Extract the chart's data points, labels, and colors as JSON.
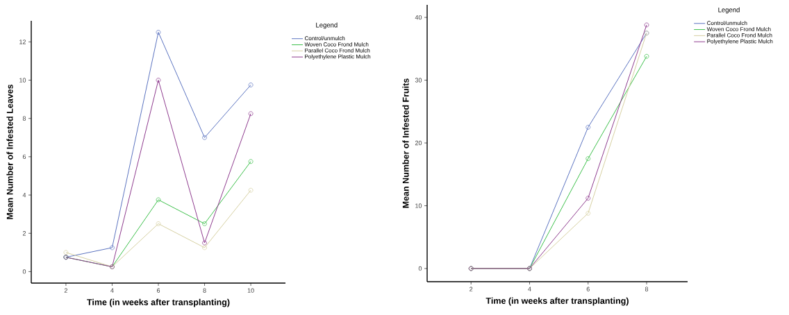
{
  "chart_data": [
    {
      "type": "line",
      "xlabel": "Time (in weeks after transplanting)",
      "ylabel": "Mean Number of Infested Leaves",
      "legend_title": "Legend",
      "legend": "top right",
      "marker": "circle",
      "grid": false,
      "x": [
        2,
        4,
        6,
        8,
        10
      ],
      "xlim": [
        0.5,
        11.5
      ],
      "xticks": [
        2,
        4,
        6,
        8,
        10
      ],
      "ylim": [
        -0.6,
        13.1
      ],
      "yticks": [
        0,
        2,
        4,
        6,
        8,
        10,
        12
      ],
      "series": [
        {
          "name": "Control/unmulch",
          "color": "#5a72c0",
          "values": [
            0.75,
            1.25,
            12.5,
            7,
            9.75
          ]
        },
        {
          "name": "Woven Coco Frond Mulch",
          "color": "#3cc04a",
          "values": [
            0.75,
            0.25,
            3.75,
            2.5,
            5.75
          ]
        },
        {
          "name": "Parallel Coco Frond Mulch",
          "color": "#d6d0a2",
          "values": [
            1,
            0.25,
            2.5,
            1.25,
            4.25
          ]
        },
        {
          "name": "Polyethylene Plastic Mulch",
          "color": "#8e3a8e",
          "values": [
            0.75,
            0.25,
            10,
            1.5,
            8.25
          ]
        }
      ]
    },
    {
      "type": "line",
      "xlabel": "Time (in weeks after transplanting)",
      "ylabel": "Mean Number of Infested Fruits",
      "legend_title": "Legend",
      "legend": "top right",
      "marker": "circle",
      "grid": false,
      "x": [
        2,
        4,
        6,
        8
      ],
      "xlim": [
        0.5,
        9.4
      ],
      "xticks": [
        2,
        4,
        6,
        8
      ],
      "ylim": [
        -2.1,
        42
      ],
      "yticks": [
        0,
        10,
        20,
        30,
        40
      ],
      "series": [
        {
          "name": "Control/unmulch",
          "color": "#5a72c0",
          "values": [
            0,
            0,
            22.5,
            37.5
          ]
        },
        {
          "name": "Woven Coco Frond Mulch",
          "color": "#3cc04a",
          "values": [
            0,
            0,
            17.5,
            33.8
          ]
        },
        {
          "name": "Parallel Coco Frond Mulch",
          "color": "#d6d0a2",
          "values": [
            0,
            0,
            8.8,
            37.5
          ]
        },
        {
          "name": "Polyethylene Plastic Mulch",
          "color": "#8e3a8e",
          "values": [
            0,
            0,
            11.2,
            38.8
          ]
        }
      ]
    }
  ]
}
